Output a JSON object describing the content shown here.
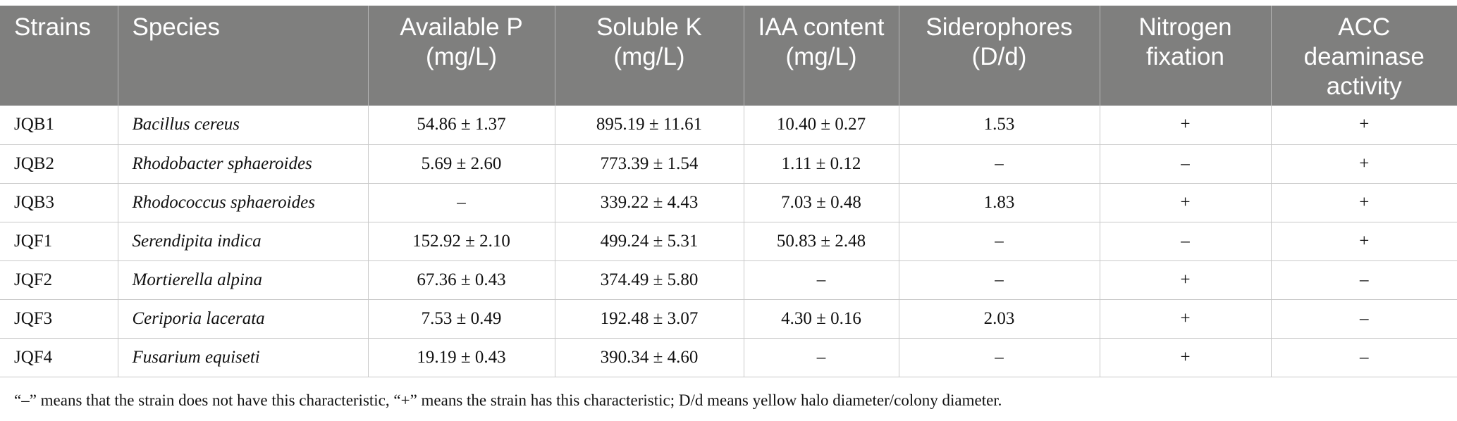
{
  "table": {
    "headers": [
      "Strains",
      "Species",
      "Available P (mg/L)",
      "Soluble K (mg/L)",
      "IAA content (mg/L)",
      "Siderophores (D/d)",
      "Nitrogen fixation",
      "ACC deaminase activity"
    ],
    "rows": [
      [
        "JQB1",
        "Bacillus cereus",
        "54.86 ± 1.37",
        "895.19 ± 11.61",
        "10.40 ± 0.27",
        "1.53",
        "+",
        "+"
      ],
      [
        "JQB2",
        "Rhodobacter sphaeroides",
        "5.69 ± 2.60",
        "773.39 ± 1.54",
        "1.11 ± 0.12",
        "–",
        "–",
        "+"
      ],
      [
        "JQB3",
        "Rhodococcus sphaeroides",
        "–",
        "339.22 ± 4.43",
        "7.03 ± 0.48",
        "1.83",
        "+",
        "+"
      ],
      [
        "JQF1",
        "Serendipita indica",
        "152.92 ± 2.10",
        "499.24 ± 5.31",
        "50.83 ± 2.48",
        "–",
        "–",
        "+"
      ],
      [
        "JQF2",
        "Mortierella alpina",
        "67.36 ± 0.43",
        "374.49 ± 5.80",
        "–",
        "–",
        "+",
        "–"
      ],
      [
        "JQF3",
        "Ceriporia lacerata",
        "7.53 ± 0.49",
        "192.48 ± 3.07",
        "4.30 ± 0.16",
        "2.03",
        "+",
        "–"
      ],
      [
        "JQF4",
        "Fusarium equiseti",
        "19.19 ± 0.43",
        "390.34 ± 4.60",
        "–",
        "–",
        "+",
        "–"
      ]
    ]
  },
  "footnote": "“–” means that the strain does not have this characteristic, “+” means the strain has this characteristic; D/d means yellow halo diameter/colony diameter.",
  "colors": {
    "header_bg": "#7f7f7e",
    "header_text": "#ffffff",
    "grid": "#c9c9c9"
  }
}
